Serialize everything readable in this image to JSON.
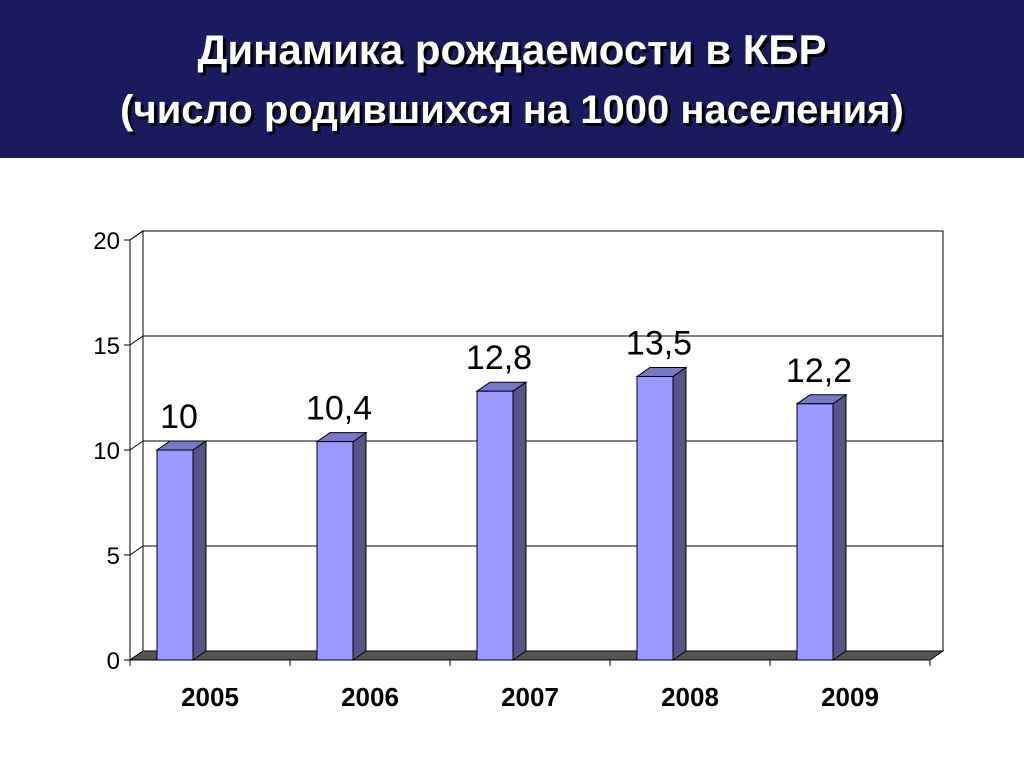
{
  "slide": {
    "title_line1": "Динамика рождаемости в КБР",
    "title_line2": "(число родившихся на 1000 населения)"
  },
  "colors": {
    "header_bg": "#1a1a5e",
    "bar_front": "#9999ff",
    "bar_side": "#55558a",
    "bar_top": "#7777cc",
    "floor": "#555555"
  },
  "chart_data": {
    "type": "bar",
    "categories": [
      "2005",
      "2006",
      "2007",
      "2008",
      "2009"
    ],
    "values": [
      10,
      10.4,
      12.8,
      13.5,
      12.2
    ],
    "value_labels": [
      "10",
      "10,4",
      "12,8",
      "13,5",
      "12,2"
    ],
    "yticks": [
      "0",
      "5",
      "10",
      "15",
      "20"
    ],
    "ylim": [
      0,
      20
    ],
    "grid": true,
    "legend": "none",
    "three_d": true
  }
}
